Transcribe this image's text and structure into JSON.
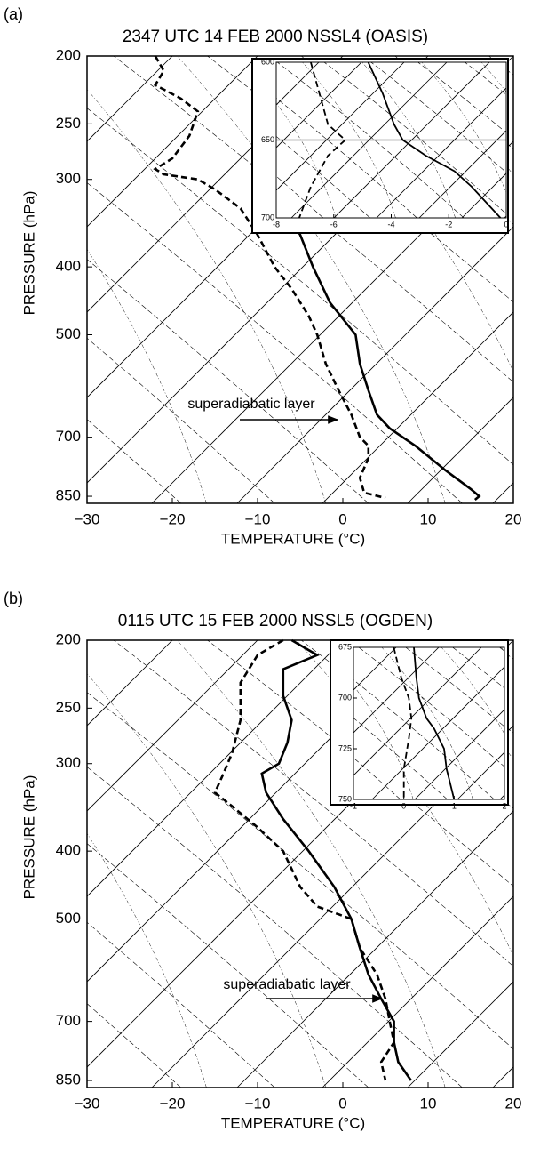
{
  "chart_data": [
    {
      "type": "skewt",
      "panel_label": "(a)",
      "title": "2347 UTC 14 FEB 2000   NSSL4 (OASIS)",
      "xlabel": "TEMPERATURE (°C)",
      "ylabel": "PRESSURE (hPa)",
      "xlim": [
        -30,
        20
      ],
      "xticks": [
        {
          "value": -30,
          "label": "−30"
        },
        {
          "value": -20,
          "label": "−20"
        },
        {
          "value": -10,
          "label": "−10"
        },
        0,
        10,
        20
      ],
      "ylim": [
        200,
        870
      ],
      "yticks": [
        200,
        250,
        300,
        400,
        500,
        700,
        850
      ],
      "yscale": "log",
      "annotation": "superadiabatic layer",
      "series": [
        {
          "style": "solid",
          "color": "#000",
          "pressure": [
            330,
            360,
            400,
            450,
            500,
            550,
            600,
            650,
            680,
            720,
            780,
            830,
            850,
            860
          ],
          "values": [
            -7,
            -5,
            -3.5,
            -1.5,
            1.5,
            2,
            3,
            4,
            5.5,
            8.5,
            12,
            15,
            16,
            15.5
          ]
        },
        {
          "style": "dashed",
          "color": "#000",
          "pressure": [
            200,
            210,
            220,
            230,
            240,
            260,
            280,
            290,
            295,
            300,
            310,
            330,
            360,
            400,
            430,
            470,
            500,
            550,
            600,
            650,
            700,
            720,
            750,
            800,
            840,
            855
          ],
          "values": [
            -22,
            -21,
            -22,
            -19,
            -17,
            -18,
            -20,
            -22,
            -21,
            -17,
            -15,
            -12,
            -10,
            -8,
            -6,
            -4,
            -3,
            -2,
            -0.5,
            1,
            2,
            3,
            3,
            2,
            2.5,
            5
          ]
        }
      ],
      "inset": {
        "xlim": [
          -8,
          0
        ],
        "xticks": [
          -8,
          -6,
          -4,
          -2,
          0
        ],
        "ylim": [
          600,
          700
        ],
        "yticks": [
          600,
          650,
          700
        ],
        "series": [
          {
            "style": "solid",
            "color": "#000",
            "pressure": [
              600,
              620,
              640,
              650,
              660,
              670,
              680,
              690,
              700
            ],
            "values": [
              -4.8,
              -4.3,
              -3.9,
              -3.6,
              -2.8,
              -1.8,
              -1.2,
              -0.7,
              -0.2
            ]
          },
          {
            "style": "dashed",
            "color": "#000",
            "pressure": [
              600,
              620,
              640,
              650,
              660,
              680,
              700
            ],
            "values": [
              -6.8,
              -6.5,
              -6.2,
              -5.6,
              -6.2,
              -6.8,
              -7.2
            ]
          }
        ]
      }
    },
    {
      "type": "skewt",
      "panel_label": "(b)",
      "title": "0115 UTC 15 FEB 2000   NSSL5 (OGDEN)",
      "xlabel": "TEMPERATURE (°C)",
      "ylabel": "PRESSURE (hPa)",
      "xlim": [
        -30,
        20
      ],
      "xticks": [
        {
          "value": -30,
          "label": "−30"
        },
        {
          "value": -20,
          "label": "−20"
        },
        {
          "value": -10,
          "label": "−10"
        },
        0,
        10,
        20
      ],
      "ylim": [
        200,
        870
      ],
      "yticks": [
        200,
        250,
        300,
        400,
        500,
        700,
        850
      ],
      "yscale": "log",
      "annotation": "superadiabatic layer",
      "series": [
        {
          "style": "solid",
          "color": "#000",
          "pressure": [
            200,
            210,
            220,
            240,
            260,
            280,
            300,
            310,
            330,
            360,
            400,
            450,
            500,
            550,
            600,
            650,
            700,
            750,
            800,
            850
          ],
          "values": [
            -6,
            -3,
            -7,
            -7,
            -6,
            -6.5,
            -7.5,
            -9.5,
            -9,
            -7,
            -4,
            -1,
            1,
            2,
            3,
            4.5,
            6,
            6,
            6.5,
            8
          ]
        },
        {
          "style": "dashed",
          "color": "#000",
          "pressure": [
            200,
            210,
            230,
            260,
            290,
            310,
            330,
            345,
            370,
            400,
            450,
            480,
            500,
            550,
            600,
            650,
            700,
            750,
            800,
            850
          ],
          "values": [
            -7,
            -10,
            -12,
            -12,
            -13,
            -14,
            -15,
            -13,
            -10,
            -7,
            -5,
            -3,
            1,
            2,
            4,
            5,
            5.5,
            6,
            4.5,
            5
          ]
        }
      ],
      "inset": {
        "xlim": [
          -1,
          2
        ],
        "xticks": [
          -1,
          0,
          1,
          2
        ],
        "ylim": [
          675,
          750
        ],
        "yticks": [
          675,
          700,
          725,
          750
        ],
        "series": [
          {
            "style": "solid",
            "color": "#000",
            "pressure": [
              675,
              690,
              700,
              710,
              715,
              725,
              735,
              740,
              750
            ],
            "values": [
              0.2,
              0.25,
              0.3,
              0.45,
              0.6,
              0.8,
              0.85,
              0.9,
              1
            ]
          },
          {
            "style": "dashed",
            "color": "#000",
            "pressure": [
              675,
              690,
              700,
              710,
              720,
              735,
              750
            ],
            "values": [
              -0.2,
              -0.05,
              0.1,
              0.15,
              0.1,
              0,
              0
            ]
          }
        ]
      }
    }
  ]
}
